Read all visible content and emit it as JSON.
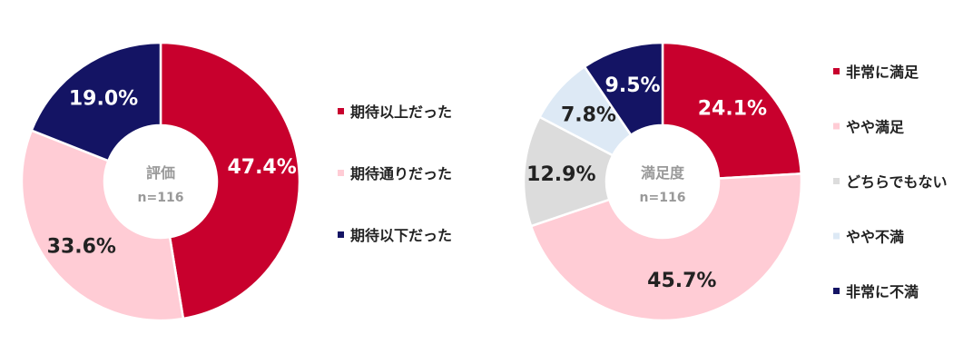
{
  "chart_data": [
    {
      "type": "pie",
      "center_label": "評価",
      "n_label": "n=116",
      "slices": [
        {
          "label": "期待以上だった",
          "value": 47.4,
          "display": "47.4%",
          "color": "#c8002d",
          "text_color": "#ffffff"
        },
        {
          "label": "期待通りだった",
          "value": 33.6,
          "display": "33.6%",
          "color": "#ffccd5",
          "text_color": "#222222"
        },
        {
          "label": "期待以下だった",
          "value": 19.0,
          "display": "19.0%",
          "color": "#141464",
          "text_color": "#ffffff"
        }
      ],
      "legend": [
        "期待以上だった",
        "期待通りだった",
        "期待以下だった"
      ]
    },
    {
      "type": "pie",
      "center_label": "満足度",
      "n_label": "n=116",
      "slices": [
        {
          "label": "非常に満足",
          "value": 24.1,
          "display": "24.1%",
          "color": "#c8002d",
          "text_color": "#ffffff"
        },
        {
          "label": "やや満足",
          "value": 45.7,
          "display": "45.7%",
          "color": "#ffccd5",
          "text_color": "#222222"
        },
        {
          "label": "どちらでもない",
          "value": 12.9,
          "display": "12.9%",
          "color": "#dcdcdc",
          "text_color": "#222222"
        },
        {
          "label": "やや不満",
          "value": 7.8,
          "display": "7.8%",
          "color": "#dde9f5",
          "text_color": "#222222"
        },
        {
          "label": "非常に不満",
          "value": 9.5,
          "display": "9.5%",
          "color": "#141464",
          "text_color": "#ffffff"
        }
      ],
      "legend": [
        "非常に満足",
        "やや満足",
        "どちらでもない",
        "やや不満",
        "非常に不満"
      ]
    }
  ]
}
